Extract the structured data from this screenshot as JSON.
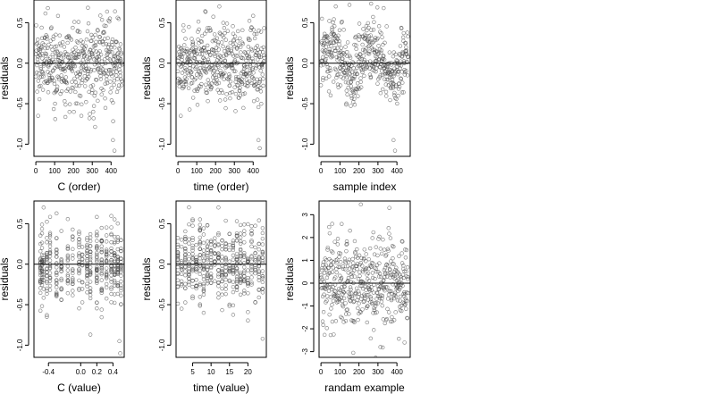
{
  "chart_data": [
    {
      "type": "scatter",
      "title": "",
      "xlabel": "C (order)",
      "ylabel": "residuals",
      "xlim": [
        -10,
        470
      ],
      "ylim": [
        -1.15,
        0.78
      ],
      "x_ticks": [
        0,
        100,
        200,
        300,
        400
      ],
      "y_ticks": [
        -1.0,
        -0.5,
        0.0,
        0.5
      ],
      "x_tick_labels": [
        "0",
        "100",
        "200",
        "300",
        "400"
      ],
      "y_tick_labels": [
        "-1.0",
        "-0.5",
        "0.0",
        "0.5"
      ],
      "reference_line": 0,
      "n_points": 460,
      "noise_sd": 0.25,
      "pattern": "index",
      "highlights": [
        [
          410,
          -0.95
        ],
        [
          418,
          -1.08
        ],
        [
          12,
          -0.65
        ],
        [
          64,
          0.68
        ]
      ]
    },
    {
      "type": "scatter",
      "title": "",
      "xlabel": "time (order)",
      "ylabel": "residuals",
      "xlim": [
        -10,
        470
      ],
      "ylim": [
        -1.15,
        0.78
      ],
      "x_ticks": [
        0,
        100,
        200,
        300,
        400
      ],
      "y_ticks": [
        -1.0,
        -0.5,
        0.0,
        0.5
      ],
      "x_tick_labels": [
        "0",
        "100",
        "200",
        "300",
        "400"
      ],
      "y_tick_labels": [
        "-1.0",
        "-0.5",
        "0.0",
        "0.5"
      ],
      "reference_line": 0,
      "n_points": 460,
      "noise_sd": 0.24,
      "pattern": "index",
      "highlights": [
        [
          428,
          -0.95
        ],
        [
          435,
          -1.05
        ],
        [
          15,
          -0.65
        ],
        [
          220,
          0.7
        ]
      ]
    },
    {
      "type": "scatter",
      "title": "",
      "xlabel": "sample index",
      "ylabel": "residuals",
      "xlim": [
        -10,
        470
      ],
      "ylim": [
        -1.15,
        0.78
      ],
      "x_ticks": [
        0,
        100,
        200,
        300,
        400
      ],
      "y_ticks": [
        -1.0,
        -0.5,
        0.0,
        0.5
      ],
      "x_tick_labels": [
        "0",
        "100",
        "200",
        "300",
        "400"
      ],
      "y_tick_labels": [
        "-1.0",
        "-0.5",
        "0.0",
        "0.5"
      ],
      "reference_line": 0,
      "n_points": 460,
      "noise_sd": 0.2,
      "pattern": "wave",
      "highlights": [
        [
          382,
          -0.95
        ],
        [
          390,
          -1.08
        ],
        [
          150,
          0.72
        ],
        [
          330,
          0.68
        ]
      ]
    },
    {
      "type": "scatter",
      "title": "",
      "xlabel": "C (value)",
      "ylabel": "residuals",
      "xlim": [
        -0.58,
        0.54
      ],
      "ylim": [
        -1.15,
        0.78
      ],
      "x_ticks": [
        -0.4,
        0.0,
        0.2,
        0.4
      ],
      "y_ticks": [
        -1.0,
        -0.5,
        0.0,
        0.5
      ],
      "x_tick_labels": [
        "-0.4",
        "0.0",
        "0.2",
        "0.4"
      ],
      "y_tick_labels": [
        "-1.0",
        "-0.5",
        "0.0",
        "0.5"
      ],
      "reference_line": 0,
      "n_points": 460,
      "noise_sd": 0.24,
      "pattern": "discrete",
      "levels": [
        -0.5,
        -0.48,
        -0.46,
        -0.42,
        -0.38,
        -0.3,
        -0.24,
        -0.16,
        -0.1,
        -0.02,
        0.02,
        0.08,
        0.12,
        0.2,
        0.26,
        0.32,
        0.38,
        0.42,
        0.46,
        0.5
      ],
      "highlights": [
        [
          0.48,
          -0.95
        ],
        [
          0.49,
          -1.1
        ],
        [
          -0.46,
          0.7
        ],
        [
          -0.42,
          -0.65
        ]
      ]
    },
    {
      "type": "scatter",
      "title": "",
      "xlabel": "time (value)",
      "ylabel": "residuals",
      "xlim": [
        0.5,
        25
      ],
      "ylim": [
        -1.15,
        0.78
      ],
      "x_ticks": [
        5,
        10,
        15,
        20
      ],
      "y_ticks": [
        -1.0,
        -0.5,
        0.0,
        0.5
      ],
      "x_tick_labels": [
        "5",
        "10",
        "15",
        "20"
      ],
      "y_tick_labels": [
        "-1.0",
        "-0.5",
        "0.0",
        "0.5"
      ],
      "reference_line": 0,
      "n_points": 460,
      "noise_sd": 0.24,
      "pattern": "discrete",
      "levels": [
        1,
        2,
        3,
        4,
        5,
        6,
        7,
        8,
        9,
        10,
        11,
        12,
        13,
        14,
        15,
        16,
        17,
        18,
        19,
        20,
        21,
        22,
        23,
        24
      ],
      "highlights": [
        [
          24,
          -0.92
        ],
        [
          12,
          0.7
        ],
        [
          8,
          -0.6
        ],
        [
          2,
          -0.55
        ]
      ]
    },
    {
      "type": "scatter",
      "title": "",
      "xlabel": "randam example",
      "ylabel": "residuals",
      "xlim": [
        -10,
        470
      ],
      "ylim": [
        -3.25,
        3.6
      ],
      "x_ticks": [
        0,
        100,
        200,
        300,
        400
      ],
      "y_ticks": [
        -3,
        -2,
        -1,
        0,
        1,
        2,
        3
      ],
      "x_tick_labels": [
        "0",
        "100",
        "200",
        "300",
        "400"
      ],
      "y_tick_labels": [
        "-3",
        "-2",
        "-1",
        "0",
        "1",
        "2",
        "3"
      ],
      "reference_line": 0,
      "n_points": 460,
      "noise_sd": 1.0,
      "pattern": "index",
      "highlights": [
        [
          210,
          3.45
        ],
        [
          360,
          3.3
        ],
        [
          170,
          -3.05
        ],
        [
          440,
          -2.6
        ]
      ]
    }
  ]
}
